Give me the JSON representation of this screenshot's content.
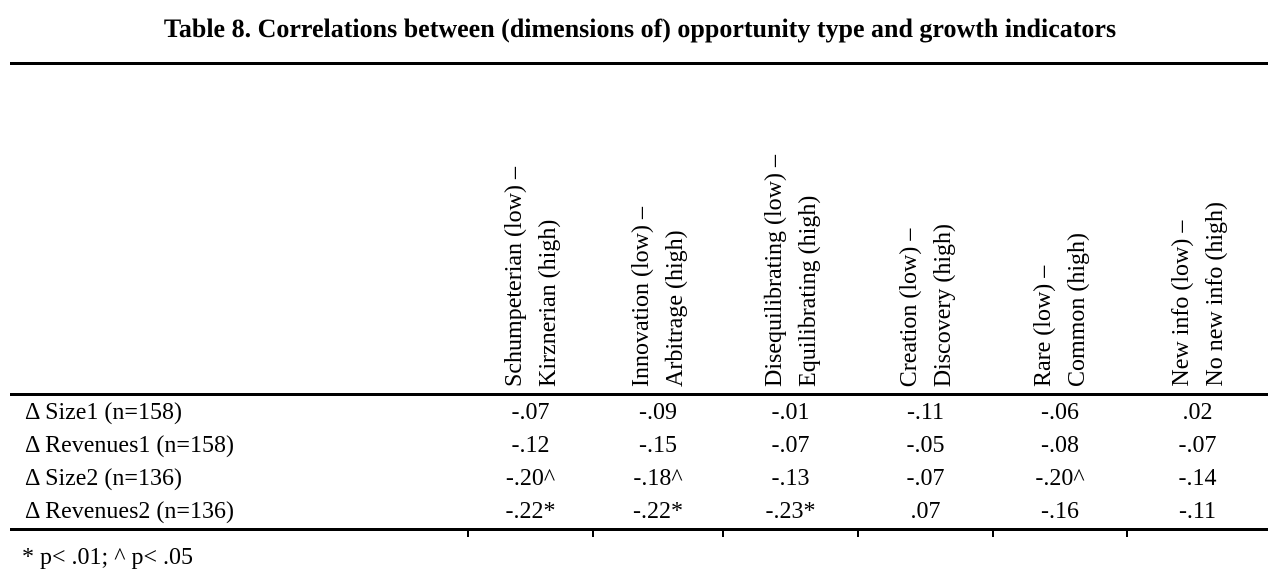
{
  "title": "Table 8. Correlations between (dimensions of) opportunity type and growth indicators",
  "table": {
    "columns": [
      {
        "line1": "Schumpeterian (low) –",
        "line2": "Kirznerian (high)"
      },
      {
        "line1": "Innovation (low) –",
        "line2": "Arbitrage (high)"
      },
      {
        "line1": "Disequilibrating (low) –",
        "line2": "Equilibrating (high)"
      },
      {
        "line1": "Creation (low) –",
        "line2": "Discovery (high)"
      },
      {
        "line1": "Rare (low) –",
        "line2": "Common (high)"
      },
      {
        "line1": "New info (low) –",
        "line2": "No new info (high)"
      }
    ],
    "rows": [
      {
        "label": "Δ Size1 (n=158)",
        "values": [
          "-.07",
          "-.09",
          "-.01",
          "-.11",
          "-.06",
          ".02"
        ]
      },
      {
        "label": "Δ Revenues1 (n=158)",
        "values": [
          "-.12",
          "-.15",
          "-.07",
          "-.05",
          "-.08",
          "-.07"
        ]
      },
      {
        "label": "Δ Size2 (n=136)",
        "values": [
          "-.20^",
          "-.18^",
          "-.13",
          "-.07",
          "-.20^",
          "-.14"
        ]
      },
      {
        "label": "Δ Revenues2 (n=136)",
        "values": [
          "-.22*",
          "-.22*",
          "-.23*",
          ".07",
          "-.16",
          "-.11"
        ]
      }
    ],
    "footnote": "* p< .01; ^ p< .05"
  },
  "colors": {
    "text": "#000000",
    "background": "#ffffff"
  }
}
